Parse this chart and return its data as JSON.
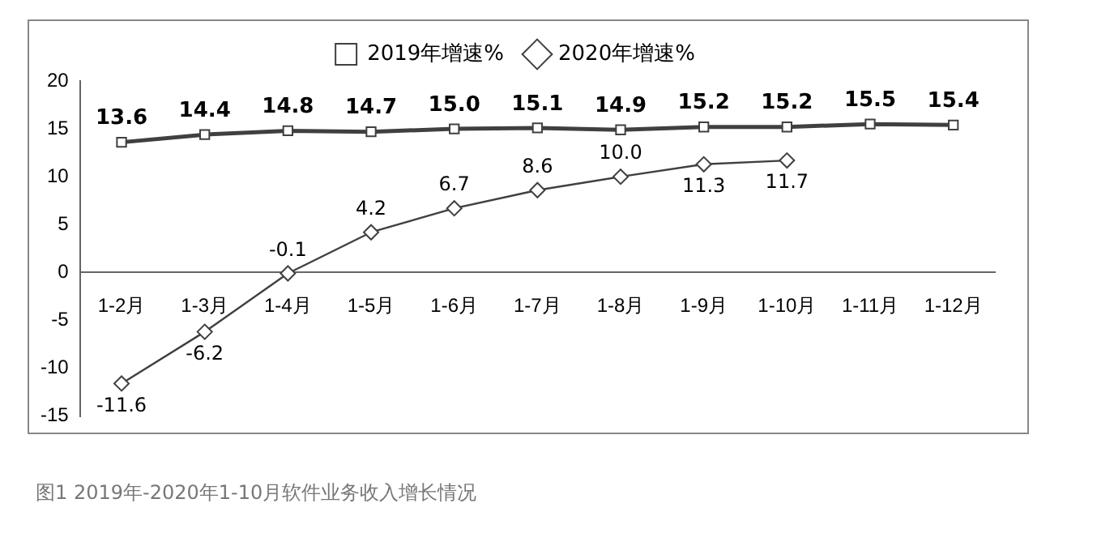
{
  "chart_data": {
    "type": "line",
    "categories": [
      "1-2月",
      "1-3月",
      "1-4月",
      "1-5月",
      "1-6月",
      "1-7月",
      "1-8月",
      "1-9月",
      "1-10月",
      "1-11月",
      "1-12月"
    ],
    "series": [
      {
        "name": "2019年增速%",
        "color": "#404040",
        "marker": "square",
        "values": [
          13.6,
          14.4,
          14.8,
          14.7,
          15.0,
          15.1,
          14.9,
          15.2,
          15.2,
          15.5,
          15.4
        ],
        "value_labels": [
          "13.6",
          "14.4",
          "14.8",
          "14.7",
          "15.0",
          "15.1",
          "14.9",
          "15.2",
          "15.2",
          "15.5",
          "15.4"
        ]
      },
      {
        "name": "2020年增速%",
        "color": "#404040",
        "marker": "diamond",
        "values": [
          -11.6,
          -6.2,
          -0.1,
          4.2,
          6.7,
          8.6,
          10.0,
          11.3,
          11.7,
          null,
          null
        ],
        "value_labels": [
          "-11.6",
          "-6.2",
          "-0.1",
          "4.2",
          "6.7",
          "8.6",
          "10.0",
          "11.3",
          "11.7",
          null,
          null
        ]
      }
    ],
    "ylim": [
      -15,
      20
    ],
    "yticks": [
      -15,
      -10,
      -5,
      0,
      5,
      10,
      15,
      20
    ],
    "grid": false,
    "legend": "top",
    "annotations": [
      "图1  2019年-2020年1-10月软件业务收入增长情况"
    ]
  }
}
